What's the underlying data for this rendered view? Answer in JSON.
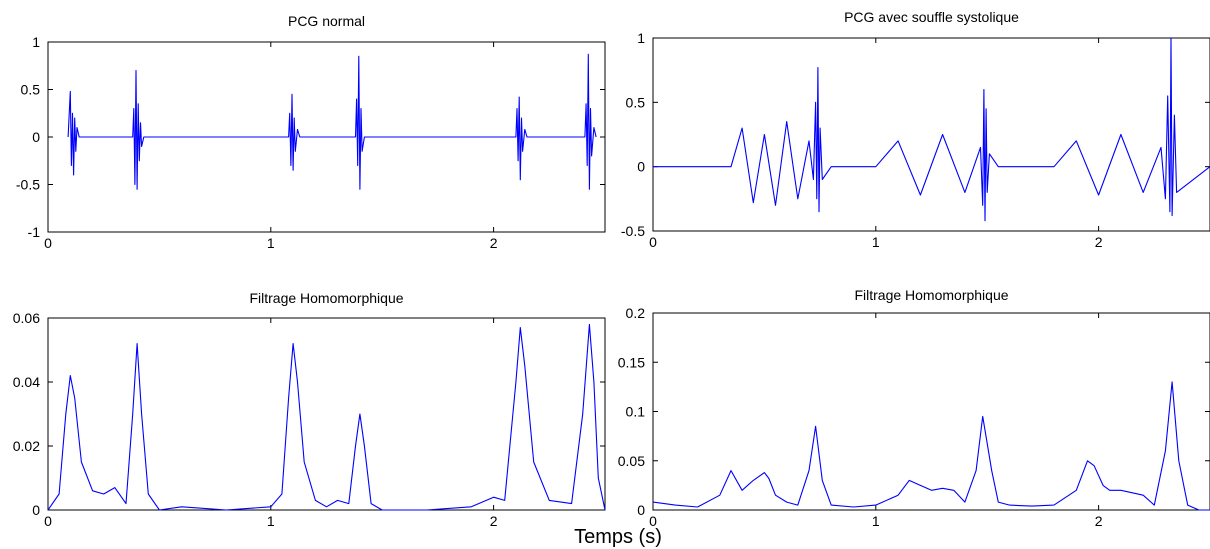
{
  "figure": {
    "xlabel": "Temps (s)"
  },
  "chart_data": [
    {
      "type": "line",
      "title": "PCG normal",
      "xlabel": "",
      "ylabel": "",
      "xlim": [
        0,
        2.5
      ],
      "ylim": [
        -1,
        1
      ],
      "xticks": [
        0,
        1,
        2
      ],
      "yticks": [
        -1,
        -0.5,
        0,
        0.5,
        1
      ],
      "xtick_labels": [
        "0",
        "1",
        "2"
      ],
      "ytick_labels": [
        "-1",
        "-0.5",
        "0",
        "0.5",
        "1"
      ],
      "grid": false,
      "color": "#0000ff",
      "series": [
        {
          "x": [
            0.09,
            0.1,
            0.105,
            0.11,
            0.115,
            0.12,
            0.125,
            0.13,
            0.14,
            0.38,
            0.385,
            0.39,
            0.395,
            0.4,
            0.405,
            0.41,
            0.415,
            0.42,
            0.43,
            1.08,
            1.085,
            1.09,
            1.095,
            1.1,
            1.105,
            1.11,
            1.12,
            1.13,
            1.38,
            1.385,
            1.39,
            1.395,
            1.4,
            1.405,
            1.41,
            1.42,
            2.1,
            2.105,
            2.11,
            2.115,
            2.12,
            2.125,
            2.13,
            2.14,
            2.15,
            2.41,
            2.415,
            2.42,
            2.425,
            2.43,
            2.435,
            2.44,
            2.45,
            2.46
          ],
          "y": [
            0.0,
            0.48,
            -0.3,
            0.25,
            -0.4,
            0.2,
            -0.15,
            0.1,
            0.0,
            0.0,
            0.3,
            -0.5,
            0.7,
            -0.55,
            0.35,
            -0.25,
            0.15,
            -0.1,
            0.0,
            0.0,
            0.25,
            -0.3,
            0.45,
            -0.35,
            0.2,
            -0.15,
            0.08,
            0.0,
            0.0,
            0.4,
            -0.3,
            0.85,
            -0.55,
            0.3,
            -0.15,
            0.0,
            0.0,
            0.3,
            -0.25,
            0.42,
            -0.45,
            0.2,
            -0.15,
            0.08,
            0.0,
            0.0,
            0.35,
            -0.3,
            0.87,
            -0.55,
            0.3,
            -0.2,
            0.1,
            0.0
          ]
        }
      ]
    },
    {
      "type": "line",
      "title": "PCG avec souffle systolique",
      "xlabel": "",
      "ylabel": "",
      "xlim": [
        0,
        2.5
      ],
      "ylim": [
        -0.5,
        1
      ],
      "xticks": [
        0,
        1,
        2
      ],
      "yticks": [
        -0.5,
        0,
        0.5,
        1
      ],
      "xtick_labels": [
        "0",
        "1",
        "2"
      ],
      "ytick_labels": [
        "-0.5",
        "0",
        "0.5",
        "1"
      ],
      "grid": false,
      "color": "#0000ff",
      "series": [
        {
          "x": [
            0.0,
            0.35,
            0.4,
            0.45,
            0.5,
            0.55,
            0.6,
            0.65,
            0.7,
            0.72,
            0.73,
            0.735,
            0.74,
            0.745,
            0.75,
            0.76,
            0.8,
            1.0,
            1.1,
            1.2,
            1.3,
            1.4,
            1.47,
            1.48,
            1.485,
            1.49,
            1.495,
            1.5,
            1.51,
            1.55,
            1.8,
            1.9,
            2.0,
            2.1,
            2.2,
            2.28,
            2.3,
            2.31,
            2.32,
            2.325,
            2.33,
            2.34,
            2.35,
            2.5
          ],
          "y": [
            0.0,
            0.0,
            0.3,
            -0.28,
            0.25,
            -0.3,
            0.35,
            -0.25,
            0.2,
            -0.1,
            0.5,
            -0.25,
            0.77,
            -0.35,
            0.3,
            -0.1,
            0.0,
            0.0,
            0.2,
            -0.22,
            0.25,
            -0.2,
            0.15,
            -0.3,
            0.6,
            -0.42,
            0.45,
            -0.2,
            0.1,
            0.0,
            0.0,
            0.2,
            -0.22,
            0.25,
            -0.2,
            0.15,
            -0.25,
            0.55,
            -0.35,
            1.0,
            -0.38,
            0.4,
            -0.2,
            0.0
          ]
        }
      ]
    },
    {
      "type": "line",
      "title": "Filtrage Homomorphique",
      "xlabel": "",
      "ylabel": "",
      "xlim": [
        0,
        2.5
      ],
      "ylim": [
        0,
        0.06
      ],
      "xticks": [
        0,
        1,
        2
      ],
      "yticks": [
        0,
        0.02,
        0.04,
        0.06
      ],
      "xtick_labels": [
        "0",
        "1",
        "2"
      ],
      "ytick_labels": [
        "0",
        "0.02",
        "0.04",
        "0.06"
      ],
      "grid": false,
      "color": "#0000ff",
      "series": [
        {
          "x": [
            0.0,
            0.05,
            0.08,
            0.1,
            0.12,
            0.15,
            0.2,
            0.25,
            0.3,
            0.35,
            0.38,
            0.4,
            0.42,
            0.45,
            0.5,
            0.6,
            0.8,
            1.0,
            1.05,
            1.08,
            1.1,
            1.12,
            1.15,
            1.2,
            1.25,
            1.3,
            1.35,
            1.38,
            1.4,
            1.42,
            1.45,
            1.5,
            1.7,
            1.9,
            2.0,
            2.05,
            2.1,
            2.12,
            2.14,
            2.18,
            2.25,
            2.35,
            2.4,
            2.43,
            2.45,
            2.47,
            2.5
          ],
          "y": [
            0.0,
            0.005,
            0.03,
            0.042,
            0.035,
            0.015,
            0.006,
            0.005,
            0.007,
            0.002,
            0.03,
            0.052,
            0.03,
            0.005,
            0.0,
            0.001,
            0.0,
            0.001,
            0.005,
            0.035,
            0.052,
            0.04,
            0.015,
            0.003,
            0.001,
            0.003,
            0.002,
            0.02,
            0.03,
            0.02,
            0.002,
            0.0,
            0.0,
            0.001,
            0.004,
            0.003,
            0.04,
            0.057,
            0.045,
            0.015,
            0.003,
            0.002,
            0.03,
            0.058,
            0.04,
            0.01,
            0.0
          ]
        }
      ]
    },
    {
      "type": "line",
      "title": "Filtrage Homomorphique",
      "xlabel": "",
      "ylabel": "",
      "xlim": [
        0,
        2.5
      ],
      "ylim": [
        0,
        0.2
      ],
      "xticks": [
        0,
        1,
        2
      ],
      "yticks": [
        0,
        0.05,
        0.1,
        0.15,
        0.2
      ],
      "xtick_labels": [
        "0",
        "1",
        "2"
      ],
      "ytick_labels": [
        "0",
        "0.05",
        "0.1",
        "0.15",
        "0.2"
      ],
      "grid": false,
      "color": "#0000ff",
      "series": [
        {
          "x": [
            0.0,
            0.1,
            0.2,
            0.3,
            0.35,
            0.4,
            0.45,
            0.5,
            0.52,
            0.55,
            0.6,
            0.65,
            0.7,
            0.73,
            0.76,
            0.8,
            0.9,
            1.0,
            1.1,
            1.15,
            1.2,
            1.25,
            1.3,
            1.35,
            1.4,
            1.45,
            1.48,
            1.52,
            1.55,
            1.6,
            1.7,
            1.8,
            1.9,
            1.95,
            1.98,
            2.02,
            2.05,
            2.1,
            2.2,
            2.25,
            2.3,
            2.33,
            2.36,
            2.4,
            2.45,
            2.5
          ],
          "y": [
            0.008,
            0.005,
            0.003,
            0.015,
            0.04,
            0.02,
            0.03,
            0.038,
            0.032,
            0.015,
            0.008,
            0.005,
            0.04,
            0.085,
            0.03,
            0.005,
            0.003,
            0.005,
            0.015,
            0.03,
            0.025,
            0.02,
            0.022,
            0.02,
            0.008,
            0.04,
            0.095,
            0.04,
            0.008,
            0.005,
            0.004,
            0.005,
            0.02,
            0.05,
            0.045,
            0.025,
            0.02,
            0.02,
            0.015,
            0.005,
            0.06,
            0.13,
            0.05,
            0.005,
            0.0,
            0.0
          ]
        }
      ]
    }
  ]
}
